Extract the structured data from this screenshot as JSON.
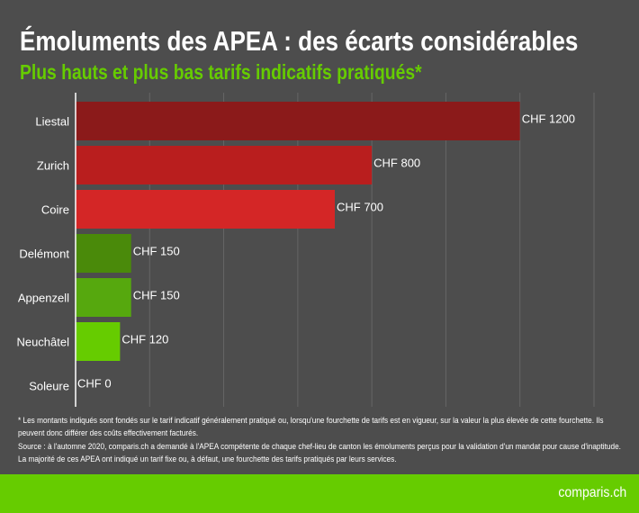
{
  "header": {
    "title": "Émoluments des APEA : des écarts considérables",
    "subtitle": "Plus hauts et plus bas tarifs indicatifs pratiqués*"
  },
  "chart_data": {
    "type": "bar",
    "orientation": "horizontal",
    "categories": [
      "Liestal",
      "Zurich",
      "Coire",
      "Delémont",
      "Appenzell",
      "Neuchâtel",
      "Soleure"
    ],
    "values": [
      1200,
      800,
      700,
      150,
      150,
      120,
      0
    ],
    "data_labels": [
      "CHF 1200",
      "CHF 800",
      "CHF 700",
      "CHF 150",
      "CHF 150",
      "CHF 120",
      "CHF 0"
    ],
    "colors": [
      "#8b1a1a",
      "#b91e1e",
      "#d42626",
      "#4a8a0a",
      "#56a80e",
      "#66cc00",
      "#66cc00"
    ],
    "xlim": [
      0,
      1400
    ],
    "grid_step": 200,
    "grid": true,
    "tick_labels_shown": false
  },
  "notes": {
    "footnote": "* Les montants indiqués sont fondés sur le tarif indicatif généralement pratiqué ou, lorsqu'une fourchette de tarifs est en vigueur, sur la valeur la plus élevée de cette fourchette. Ils peuvent donc différer des coûts effectivement facturés.",
    "source": "Source : à l'automne 2020, comparis.ch a demandé à l'APEA compétente de chaque chef-lieu de canton les émoluments perçus pour la validation d'un mandat pour cause d'inaptitude. La majorité de ces APEA ont indiqué un tarif fixe ou, à défaut, une fourchette des tarifs pratiqués par leurs services."
  },
  "footer": {
    "logo": "comparis.ch"
  },
  "colors": {
    "background": "#4d4d4d",
    "accent": "#66cc00"
  }
}
